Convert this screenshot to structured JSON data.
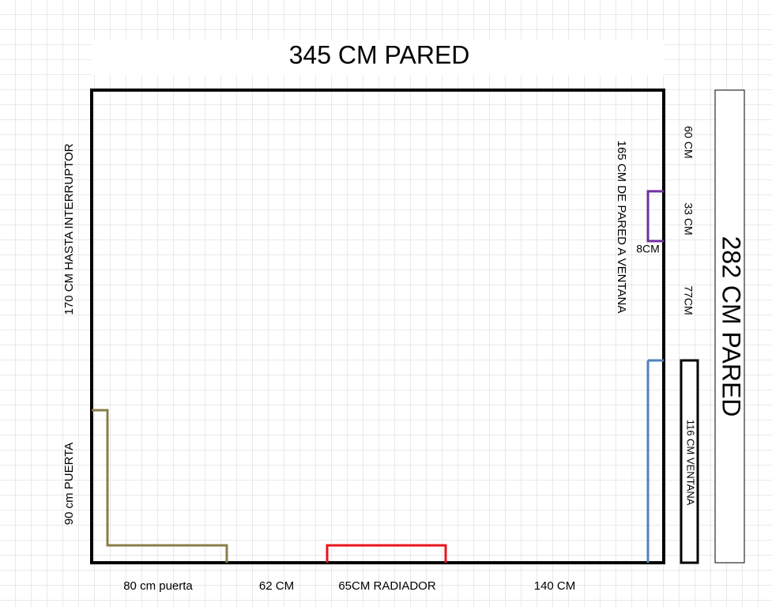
{
  "top_wall": "345 CM PARED",
  "right_wall": "282 CM PARED",
  "left_side": {
    "switch": "170 CM HASTA INTERRUPTOR",
    "door": "90 cm PUERTA"
  },
  "bottom_side": {
    "door": "80 cm puerta",
    "gap": "62 CM",
    "radiator": "65CM RADIADOR",
    "rest": "140 CM"
  },
  "right_side": {
    "to_window": "165 CM DE PARED A VENTANA",
    "top": "60 CM",
    "niche": "33 CM",
    "niche_depth": "8CM",
    "middle": "77CM",
    "window": "116 CM VENTANA"
  }
}
